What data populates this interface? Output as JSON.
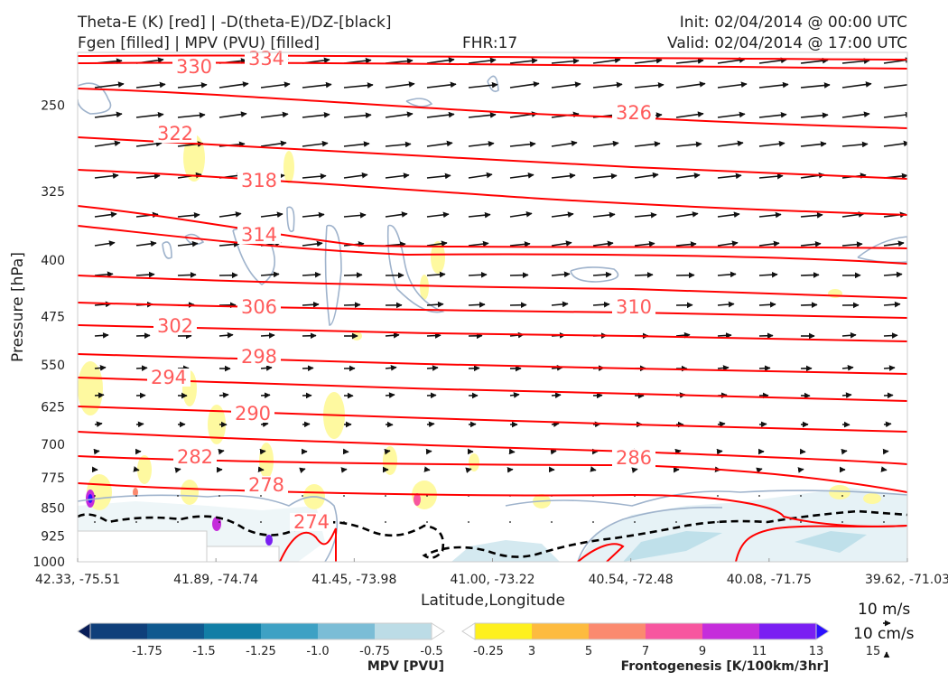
{
  "header": {
    "line1_left": "Theta-E (K) [red] | -D(theta-E)/DZ-[black]",
    "line2_left": "Fgen [filled] | MPV (PVU) [filled]",
    "fhr": "FHR:17",
    "init": "Init: 02/04/2014 @ 00:00 UTC",
    "valid": "Valid: 02/04/2014 @ 17:00 UTC"
  },
  "colors": {
    "theta_e": "#ff0000",
    "theta_e_label": "#ff5a5a",
    "mpv_contour": "#9fb3cc",
    "arrow": "#111111",
    "boundary_dashed": "#000000"
  },
  "chart_data": {
    "type": "cross-section",
    "xlabel": "Latitude,Longitude",
    "ylabel": "Pressure [hPa]",
    "x_ticks": [
      "42.33, -75.51",
      "41.89, -74.74",
      "41.45, -73.98",
      "41.00, -73.22",
      "40.54, -72.48",
      "40.08, -71.75",
      "39.62, -71.03"
    ],
    "y_ticks": [
      "250",
      "325",
      "400",
      "475",
      "550",
      "625",
      "700",
      "775",
      "850",
      "925",
      "1000"
    ],
    "y_scale": "log, inverted",
    "theta_e_contour_labels": [
      "330",
      "334",
      "326",
      "322",
      "318",
      "314",
      "306",
      "310",
      "302",
      "298",
      "294",
      "290",
      "282",
      "286",
      "278",
      "274"
    ],
    "vector_scale": {
      "horizontal": "10 m/s",
      "vertical": "10 cm/s"
    },
    "colorbars": [
      {
        "title": "MPV [PVU]",
        "ticks": [
          "-1.75",
          "-1.5",
          "-1.25",
          "-1.0",
          "-0.75",
          "-0.5",
          "-0.25"
        ],
        "colors": [
          "#081d58",
          "#0f3f7a",
          "#10598f",
          "#127ea6",
          "#3ea1c4",
          "#7bbdd6",
          "#bcdce6",
          "#ffffff"
        ]
      },
      {
        "title": "Frontogenesis [K/100km/3hr]",
        "ticks": [
          "3",
          "5",
          "7",
          "9",
          "11",
          "13",
          "15"
        ],
        "colors": [
          "#ffffff",
          "#fef01e",
          "#fdbb3f",
          "#fb8a6f",
          "#f7569f",
          "#c52ddb",
          "#7a1ff2",
          "#2b10ff"
        ]
      }
    ]
  }
}
